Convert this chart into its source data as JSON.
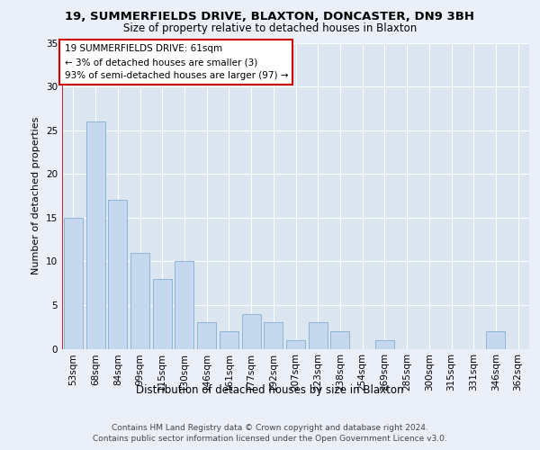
{
  "title_line1": "19, SUMMERFIELDS DRIVE, BLAXTON, DONCASTER, DN9 3BH",
  "title_line2": "Size of property relative to detached houses in Blaxton",
  "xlabel": "Distribution of detached houses by size in Blaxton",
  "ylabel": "Number of detached properties",
  "categories": [
    "53sqm",
    "68sqm",
    "84sqm",
    "99sqm",
    "115sqm",
    "130sqm",
    "146sqm",
    "161sqm",
    "177sqm",
    "192sqm",
    "207sqm",
    "223sqm",
    "238sqm",
    "254sqm",
    "269sqm",
    "285sqm",
    "300sqm",
    "315sqm",
    "331sqm",
    "346sqm",
    "362sqm"
  ],
  "values": [
    15,
    26,
    17,
    11,
    8,
    10,
    3,
    2,
    4,
    3,
    1,
    3,
    2,
    0,
    1,
    0,
    0,
    0,
    0,
    2,
    0
  ],
  "bar_color": "#c5d8ed",
  "bar_edge_color": "#8fb4d4",
  "annotation_box_color": "#ffffff",
  "annotation_border_color": "#cc0000",
  "annotation_line1": "19 SUMMERFIELDS DRIVE: 61sqm",
  "annotation_line2": "← 3% of detached houses are smaller (3)",
  "annotation_line3": "93% of semi-detached houses are larger (97) →",
  "red_line_x": -0.5,
  "ylim": [
    0,
    35
  ],
  "yticks": [
    0,
    5,
    10,
    15,
    20,
    25,
    30,
    35
  ],
  "footer_line1": "Contains HM Land Registry data © Crown copyright and database right 2024.",
  "footer_line2": "Contains public sector information licensed under the Open Government Licence v3.0.",
  "background_color": "#eaeff8",
  "plot_background": "#dce6f1",
  "grid_color": "#ffffff",
  "title1_fontsize": 9.5,
  "title2_fontsize": 8.5,
  "ylabel_fontsize": 8,
  "xlabel_fontsize": 8.5,
  "tick_fontsize": 7.5,
  "annotation_fontsize": 7.5,
  "footer_fontsize": 6.5
}
